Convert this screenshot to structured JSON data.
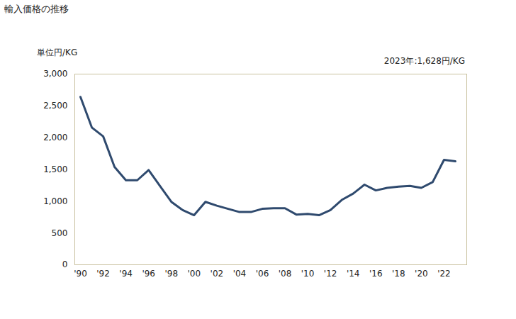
{
  "chart_data": {
    "type": "line",
    "title": "輸入価格の推移",
    "y_label": "単位円/KG",
    "annotation": "2023年:1,628円/KG",
    "x": [
      1990,
      1991,
      1992,
      1993,
      1994,
      1995,
      1996,
      1997,
      1998,
      1999,
      2000,
      2001,
      2002,
      2003,
      2004,
      2005,
      2006,
      2007,
      2008,
      2009,
      2010,
      2011,
      2012,
      2013,
      2014,
      2015,
      2016,
      2017,
      2018,
      2019,
      2020,
      2021,
      2022,
      2023
    ],
    "values": [
      2640,
      2160,
      2020,
      1540,
      1330,
      1330,
      1490,
      1240,
      990,
      860,
      780,
      990,
      930,
      880,
      830,
      830,
      880,
      890,
      890,
      790,
      800,
      780,
      860,
      1020,
      1120,
      1260,
      1170,
      1210,
      1230,
      1240,
      1210,
      1300,
      1650,
      1628
    ],
    "color": "#2f4a6e",
    "xlim": [
      1989.5,
      2024
    ],
    "xticks": [
      {
        "value": 1990,
        "label": "'90"
      },
      {
        "value": 1992,
        "label": "'92"
      },
      {
        "value": 1994,
        "label": "'94"
      },
      {
        "value": 1996,
        "label": "'96"
      },
      {
        "value": 1998,
        "label": "'98"
      },
      {
        "value": 2000,
        "label": "'00"
      },
      {
        "value": 2002,
        "label": "'02"
      },
      {
        "value": 2004,
        "label": "'04"
      },
      {
        "value": 2006,
        "label": "'06"
      },
      {
        "value": 2008,
        "label": "'08"
      },
      {
        "value": 2010,
        "label": "'10"
      },
      {
        "value": 2012,
        "label": "'12"
      },
      {
        "value": 2014,
        "label": "'14"
      },
      {
        "value": 2016,
        "label": "'16"
      },
      {
        "value": 2018,
        "label": "'18"
      },
      {
        "value": 2020,
        "label": "'20"
      },
      {
        "value": 2022,
        "label": "'22"
      }
    ],
    "ylim": [
      0,
      3000
    ],
    "yticks": [
      0,
      500,
      {
        "value": 1000,
        "label": "1,000"
      },
      {
        "value": 1500,
        "label": "1,500"
      },
      {
        "value": 2000,
        "label": "2,000"
      },
      {
        "value": 2500,
        "label": "2,500"
      },
      {
        "value": 3000,
        "label": "3,000"
      }
    ],
    "grid": false
  }
}
